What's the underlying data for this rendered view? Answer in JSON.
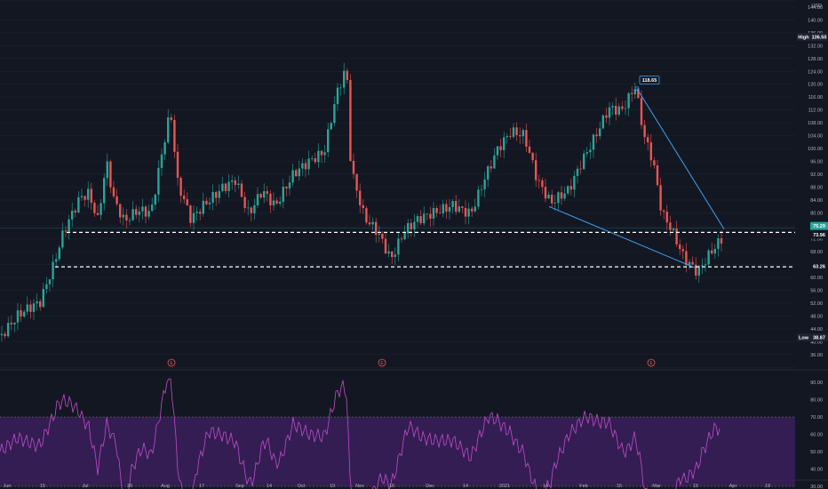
{
  "colors": {
    "background": "#131722",
    "up": "#26a69a",
    "down": "#ef5350",
    "rsi_line": "#c34ccd",
    "rsi_band": "#3a1f5a",
    "trendline": "#2962ff",
    "trendline_light": "#3fa2f5",
    "grid": "#1e222d",
    "dashed": "#ffffff"
  },
  "price_axis": {
    "currency": "USD",
    "ticks": [
      "146.00",
      "144.00",
      "140.00",
      "136.00",
      "132.00",
      "128.00",
      "124.00",
      "120.00",
      "116.00",
      "112.00",
      "108.00",
      "104.00",
      "100.00",
      "96.00",
      "92.00",
      "88.00",
      "84.00",
      "80.00",
      "76.00",
      "72.00",
      "68.00",
      "64.00",
      "60.00",
      "56.00",
      "52.00",
      "48.00",
      "44.00",
      "40.00",
      "36.00",
      "32.00"
    ],
    "high_label": "High",
    "high_value": "136.50",
    "low_label": "Low",
    "low_value": "38.87",
    "current_price": "75.29",
    "level_upper": "73.96",
    "level_lower": "63.26",
    "peak_marker": "118.65"
  },
  "rsi_axis": {
    "ticks": [
      "90.00",
      "80.00",
      "70.00",
      "60.00",
      "50.00",
      "40.00",
      "30.00"
    ]
  },
  "time_axis": {
    "ticks": [
      "Jun",
      "15",
      "Jul",
      "20",
      "Aug",
      "17",
      "Sep",
      "14",
      "Oct",
      "19",
      "Nov",
      "16",
      "Dec",
      "14",
      "2021",
      "14",
      "Feb",
      "15",
      "Mar",
      "15",
      "Apr",
      "19"
    ]
  },
  "earnings_markers": [
    "E",
    "E",
    "E"
  ],
  "chart_data": {
    "type": "candlestick",
    "series_note": "",
    "ohlc": [],
    "rsi": []
  }
}
